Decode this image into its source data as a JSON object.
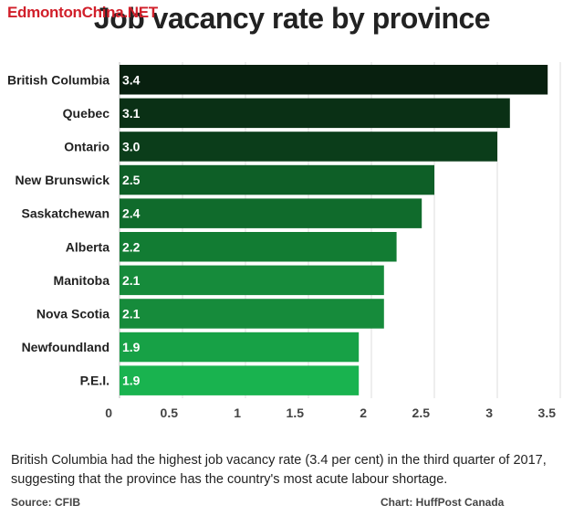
{
  "watermark": "EdmontonChina.NET",
  "chart_data": {
    "type": "bar",
    "orientation": "horizontal",
    "title": "Job vacancy rate by province",
    "categories": [
      "British Columbia",
      "Quebec",
      "Ontario",
      "New Brunswick",
      "Saskatchewan",
      "Alberta",
      "Manitoba",
      "Nova Scotia",
      "Newfoundland",
      "P.E.I."
    ],
    "values": [
      3.4,
      3.1,
      3.0,
      2.5,
      2.4,
      2.2,
      2.1,
      2.1,
      1.9,
      1.9
    ],
    "value_labels": [
      "3.4",
      "3.1",
      "3.0",
      "2.5",
      "2.4",
      "2.2",
      "2.1",
      "2.1",
      "1.9",
      "1.9"
    ],
    "xlim": [
      0,
      3.5
    ],
    "x_ticks": [
      0,
      0.5,
      1,
      1.5,
      2,
      2.5,
      3,
      3.5
    ],
    "x_tick_labels": [
      "0",
      "0.5",
      "1",
      "1.5",
      "2",
      "2.5",
      "3",
      "3.5"
    ],
    "xlabel": "",
    "ylabel": "",
    "grid": true,
    "colors": [
      "#08200f",
      "#0a3015",
      "#0b3d1a",
      "#0e5f27",
      "#106b2c",
      "#127c33",
      "#168b3b",
      "#168b3b",
      "#17a146",
      "#19b34f"
    ]
  },
  "caption": "British Columbia had the highest job vacancy rate (3.4 per cent) in the third quarter of 2017, suggesting that the province has the country's most acute labour shortage.",
  "source": "Source: CFIB",
  "credit": "Chart: HuffPost Canada"
}
